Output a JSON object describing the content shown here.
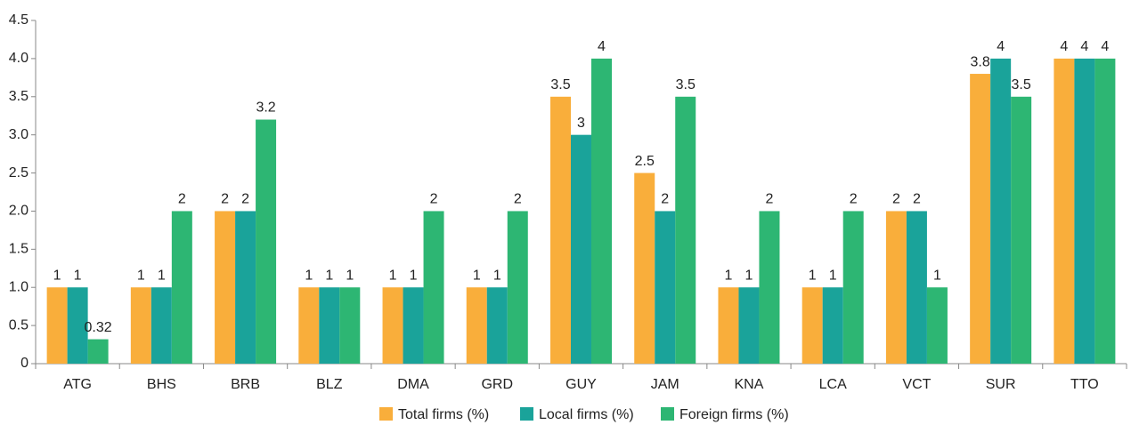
{
  "chart_data": {
    "type": "bar",
    "categories": [
      "ATG",
      "BHS",
      "BRB",
      "BLZ",
      "DMA",
      "GRD",
      "GUY",
      "JAM",
      "KNA",
      "LCA",
      "VCT",
      "SUR",
      "TTO"
    ],
    "series": [
      {
        "name": "Total firms (%)",
        "color": "#f9ae3b",
        "values": [
          1,
          1,
          2,
          1,
          1,
          1,
          3.5,
          2.5,
          1,
          1,
          2,
          3.8,
          4
        ]
      },
      {
        "name": "Local firms (%)",
        "color": "#1aa39a",
        "values": [
          1,
          1,
          2,
          1,
          1,
          1,
          3,
          2,
          1,
          1,
          2,
          4,
          4
        ]
      },
      {
        "name": "Foreign firms (%)",
        "color": "#2db673",
        "values": [
          0.32,
          2,
          3.2,
          1,
          2,
          2,
          4,
          3.5,
          2,
          2,
          1,
          3.5,
          4
        ]
      }
    ],
    "ylim": [
      0,
      4.5
    ],
    "yticks": [
      0,
      0.5,
      {
        "value": 1,
        "label": "1.0"
      },
      1.5,
      {
        "value": 2,
        "label": "2.0"
      },
      2.5,
      {
        "value": 3,
        "label": "3.0"
      },
      3.5,
      {
        "value": 4,
        "label": "4.0"
      },
      4.5
    ],
    "grid": false,
    "legend": "bottom"
  }
}
